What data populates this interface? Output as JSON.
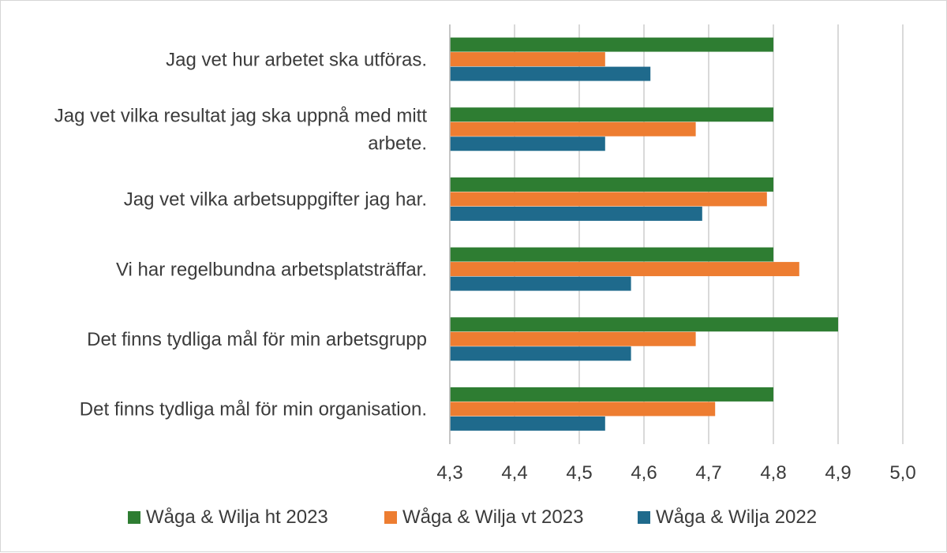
{
  "chart_data": {
    "type": "bar",
    "orientation": "horizontal",
    "categories": [
      [
        "Jag vet hur arbetet ska utföras."
      ],
      [
        "Jag vet vilka resultat jag ska uppnå med mitt",
        "arbete."
      ],
      [
        "Jag vet vilka arbetsuppgifter jag har."
      ],
      [
        "Vi har regelbundna arbetsplatsträffar."
      ],
      [
        "Det finns tydliga mål för min arbetsgrupp"
      ],
      [
        "Det finns tydliga mål för min organisation."
      ]
    ],
    "series": [
      {
        "name": "Wåga & Wilja ht 2023",
        "color": "#2e7d32",
        "values": [
          4.8,
          4.8,
          4.8,
          4.8,
          4.9,
          4.8
        ]
      },
      {
        "name": "Wåga & Wilja vt 2023",
        "color": "#ed7d31",
        "values": [
          4.54,
          4.68,
          4.79,
          4.84,
          4.68,
          4.71
        ]
      },
      {
        "name": "Wåga & Wilja 2022",
        "color": "#1f6a8c",
        "values": [
          4.61,
          4.54,
          4.69,
          4.58,
          4.58,
          4.54
        ]
      }
    ],
    "xlim": [
      4.3,
      5.0
    ],
    "xticks": [
      "4,3",
      "4,4",
      "4,5",
      "4,6",
      "4,7",
      "4,8",
      "4,9",
      "5,0"
    ],
    "grid": true,
    "legend_position": "bottom",
    "gridline_color": "#d9d9d9",
    "axis_color": "#bfbfbf"
  }
}
